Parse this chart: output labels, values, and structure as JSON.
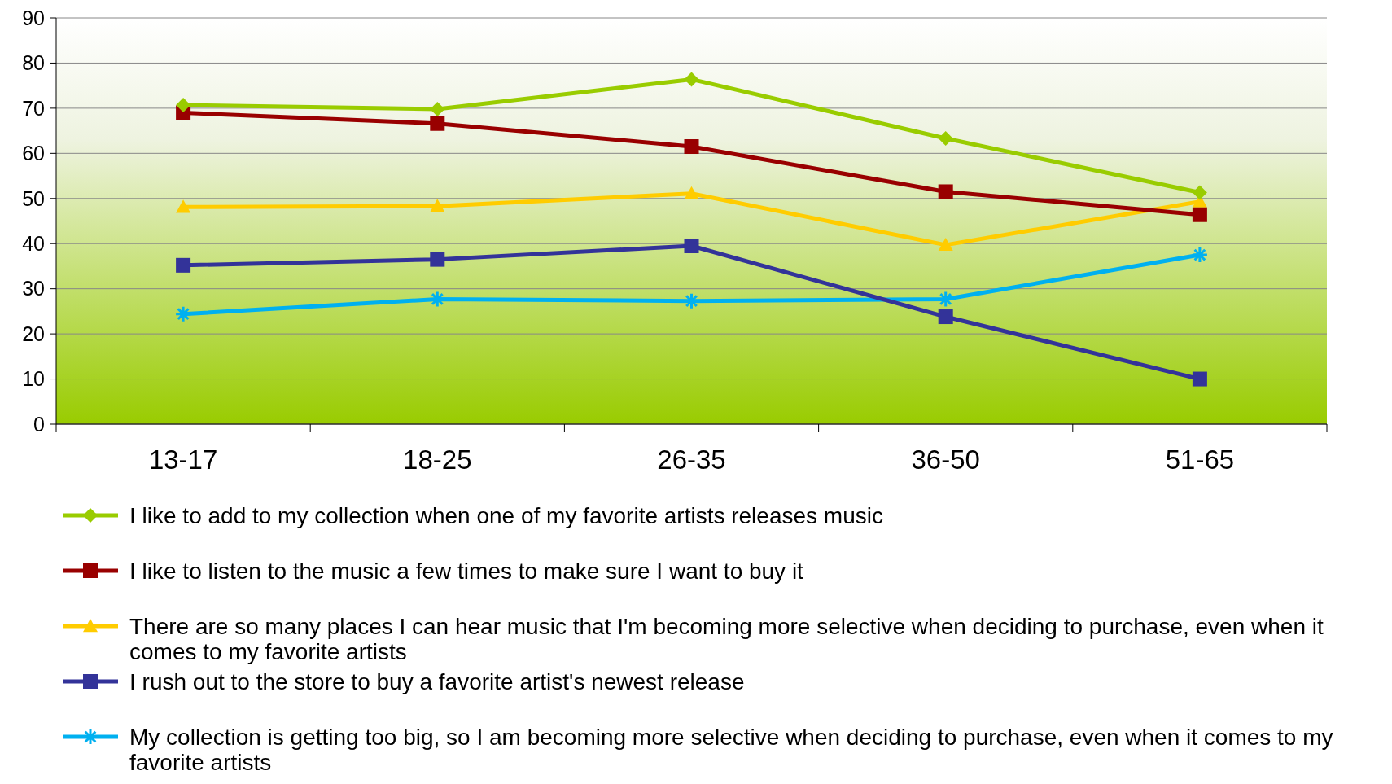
{
  "chart_data": {
    "type": "line",
    "categories": [
      "13-17",
      "18-25",
      "26-35",
      "36-50",
      "51-65"
    ],
    "series": [
      {
        "name": "I like to add to my collection when one of my favorite artists releases music",
        "color": "#99cc00",
        "marker": "diamond",
        "values": [
          70.7,
          69.8,
          76.4,
          63.3,
          51.3
        ]
      },
      {
        "name": "I like to listen to the music a few times to make sure I want to buy it",
        "color": "#990000",
        "marker": "square",
        "values": [
          69,
          66.6,
          61.5,
          51.5,
          46.4
        ]
      },
      {
        "name": "There are so many places I can hear music that I'm becoming more selective when deciding to purchase, even when it comes to my favorite artists",
        "color": "#ffcc00",
        "marker": "triangle",
        "values": [
          48.1,
          48.3,
          51.1,
          39.7,
          49.3
        ]
      },
      {
        "name": "I rush out to the store to buy a favorite artist's newest release",
        "color": "#333399",
        "marker": "square",
        "values": [
          35.2,
          36.5,
          39.5,
          23.8,
          10
        ]
      },
      {
        "name": "My collection is getting too big, so I am becoming more selective when deciding to purchase, even when it comes to my favorite artists",
        "color": "#00b0f0",
        "marker": "cross",
        "values": [
          24.4,
          27.7,
          27.3,
          27.7,
          37.5
        ]
      }
    ],
    "ylim": [
      0,
      90
    ],
    "yticks": [
      0,
      10,
      20,
      30,
      40,
      50,
      60,
      70,
      80,
      90
    ],
    "grid": "y",
    "legend": "bottom"
  }
}
